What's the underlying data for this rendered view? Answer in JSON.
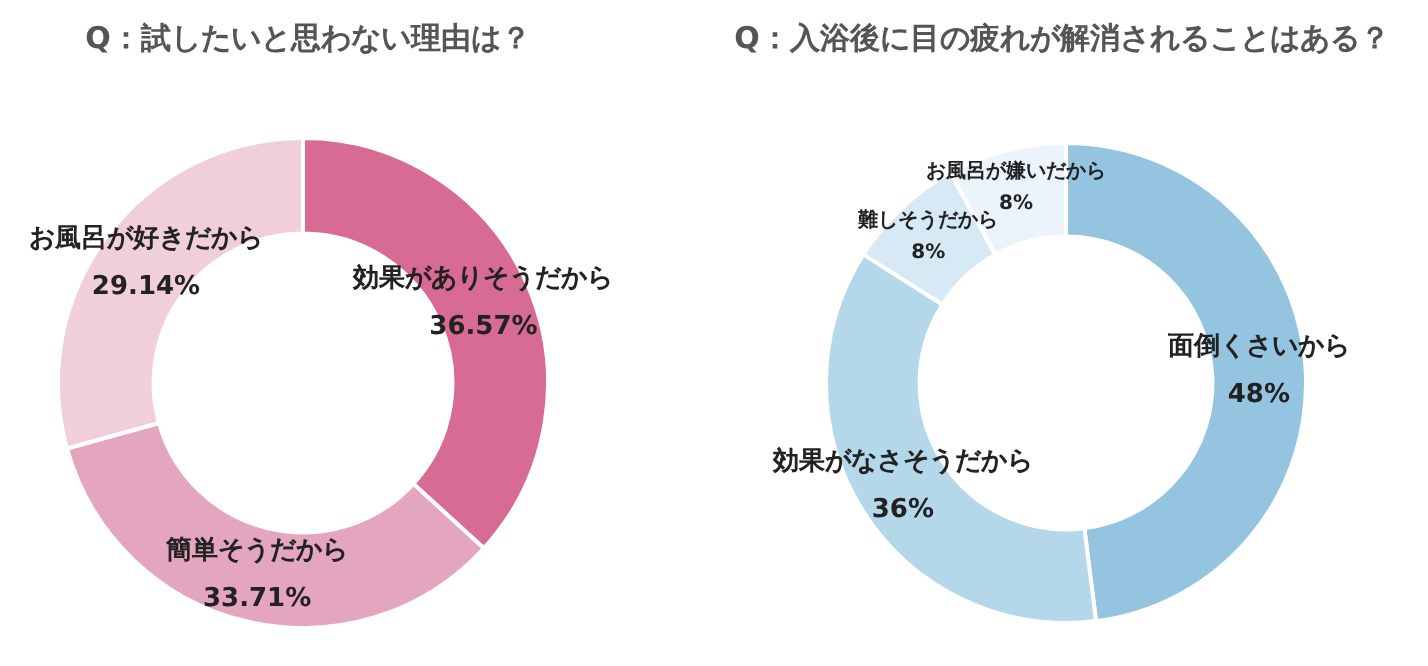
{
  "chart_data": [
    {
      "type": "donut",
      "title": "Q：試したいと思わない理由は？",
      "categories": [
        "効果がありそうだから",
        "簡単そうだから",
        "お風呂が好きだから"
      ],
      "values": [
        36.57,
        33.71,
        29.14
      ],
      "colors": [
        "#d86b93",
        "#e4a6bf",
        "#f0cedb"
      ],
      "value_labels": [
        "36.57%",
        "33.71%",
        "29.14%"
      ]
    },
    {
      "type": "donut",
      "title": "Q：入浴後に目の疲れが解消されることはある？",
      "categories": [
        "面倒くさいから",
        "効果がなさそうだから",
        "難しそうだから",
        "お風呂が嫌いだから"
      ],
      "values": [
        48,
        36,
        8,
        8
      ],
      "colors": [
        "#95c4e0",
        "#b4d7ea",
        "#d6e9f4",
        "#ebf4fa"
      ],
      "value_labels": [
        "48%",
        "36%",
        "8%",
        "8%"
      ]
    }
  ]
}
